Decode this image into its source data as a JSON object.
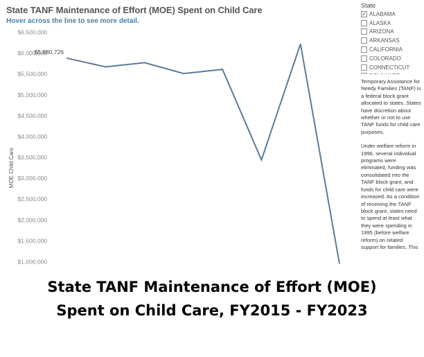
{
  "viz": {
    "title": "State TANF Maintenance of Effort (MOE) Spent on Child Care",
    "subtitle": "Hover across the line to see more detail."
  },
  "filter": {
    "title": "State",
    "items": [
      {
        "label": "ALABAMA",
        "checked": true
      },
      {
        "label": "ALASKA",
        "checked": false
      },
      {
        "label": "ARIZONA",
        "checked": false
      },
      {
        "label": "ARKANSAS",
        "checked": false
      },
      {
        "label": "CALIFORNIA",
        "checked": false
      },
      {
        "label": "COLORADO",
        "checked": false
      },
      {
        "label": "CONNECTICUT",
        "checked": false
      },
      {
        "label": "DELAWARE",
        "checked": false
      }
    ]
  },
  "description": {
    "paragraph1": [
      "Temporary Assistance for",
      "Needy Families (TANF) is",
      "a federal block grant",
      "allocated to states. States",
      "have discretion about",
      "whether or not to use",
      "TANF funds for child care",
      "purposes."
    ],
    "paragraph2": [
      "Under welfare reform in",
      "1996, several individual",
      "programs were",
      "eliminated, funding was",
      "consolidated into the",
      "TANF block grant, and",
      "funds for child care were",
      "increased. As a condition",
      "of receiving the TANF",
      "block grant, states need",
      "to spend at least what",
      "they were spending in",
      "1995 (before welfare",
      "reform) on related",
      "support for families. This"
    ]
  },
  "caption": {
    "line1": "State TANF Maintenance of Effort (MOE)",
    "line2": "Spent on Child Care, FY2015 - FY2023"
  },
  "chart_data": {
    "type": "line",
    "ylabel": "MOE Child Care",
    "xlabel": "",
    "ylim": [
      1000000,
      6500000
    ],
    "yticks": [
      6500000,
      6000000,
      5500000,
      5000000,
      4500000,
      4000000,
      3500000,
      3000000,
      2500000,
      2000000,
      1500000,
      1000000
    ],
    "ytick_labels": [
      "$6,500,000",
      "$6,000,000",
      "$5,500,000",
      "$5,000,000",
      "$4,500,000",
      "$4,000,000",
      "$3,500,000",
      "$3,000,000",
      "$2,500,000",
      "$2,000,000",
      "$1,500,000",
      "$1,000,000"
    ],
    "x": [
      1,
      2,
      3,
      4,
      5,
      6,
      7,
      8
    ],
    "series": [
      {
        "values": [
          5880726,
          5670000,
          5770000,
          5510000,
          5610000,
          3440000,
          6220000,
          950000
        ]
      }
    ],
    "annotation": {
      "point_index": 0,
      "text": "$5,880,726"
    },
    "line_color": "#5b7a99",
    "grid": false
  }
}
